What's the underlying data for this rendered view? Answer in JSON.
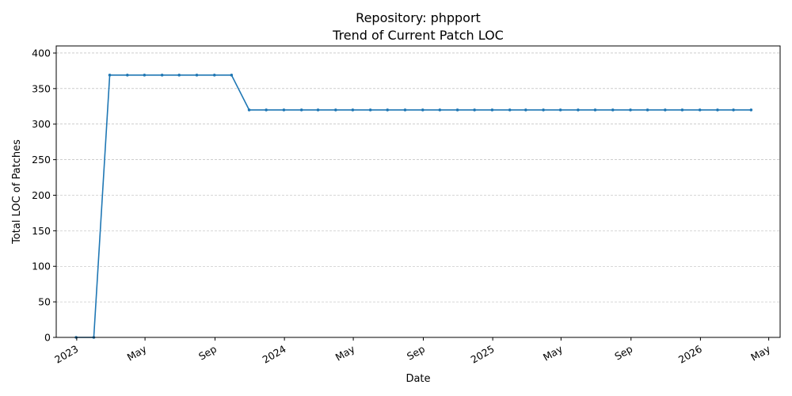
{
  "chart_data": {
    "type": "line",
    "title": "Repository: phpport",
    "subtitle": "Trend of Current Patch LOC",
    "xlabel": "Date",
    "ylabel": "Total LOC of Patches",
    "ylim": [
      0,
      410
    ],
    "yticks": [
      0,
      50,
      100,
      150,
      200,
      250,
      300,
      350,
      400
    ],
    "xlim": [
      "2022-11-26",
      "2026-05-21"
    ],
    "xticks": [
      {
        "date": "2023-01-01",
        "label": "2023"
      },
      {
        "date": "2023-05-01",
        "label": "May"
      },
      {
        "date": "2023-09-01",
        "label": "Sep"
      },
      {
        "date": "2024-01-01",
        "label": "2024"
      },
      {
        "date": "2024-05-01",
        "label": "May"
      },
      {
        "date": "2024-09-01",
        "label": "Sep"
      },
      {
        "date": "2025-01-01",
        "label": "2025"
      },
      {
        "date": "2025-05-01",
        "label": "May"
      },
      {
        "date": "2025-09-01",
        "label": "Sep"
      },
      {
        "date": "2026-01-01",
        "label": "2026"
      },
      {
        "date": "2026-05-01",
        "label": "May"
      }
    ],
    "grid": "y",
    "color": "#1f77b4",
    "series": [
      {
        "x": [
          "2022-12-31",
          "2023-01-31",
          "2023-02-28",
          "2023-03-31",
          "2023-04-30",
          "2023-05-31",
          "2023-06-30",
          "2023-07-31",
          "2023-08-31",
          "2023-09-30",
          "2023-10-31",
          "2023-11-30",
          "2023-12-31",
          "2024-01-31",
          "2024-02-29",
          "2024-03-31",
          "2024-04-30",
          "2024-05-31",
          "2024-06-30",
          "2024-07-31",
          "2024-08-31",
          "2024-09-30",
          "2024-10-31",
          "2024-11-30",
          "2024-12-31",
          "2025-01-31",
          "2025-02-28",
          "2025-03-31",
          "2025-04-30",
          "2025-05-31",
          "2025-06-30",
          "2025-07-31",
          "2025-08-31",
          "2025-09-30",
          "2025-10-31",
          "2025-11-30",
          "2025-12-31",
          "2026-01-31",
          "2026-02-28",
          "2026-03-31"
        ],
        "values": [
          0,
          0,
          369,
          369,
          369,
          369,
          369,
          369,
          369,
          369,
          320,
          320,
          320,
          320,
          320,
          320,
          320,
          320,
          320,
          320,
          320,
          320,
          320,
          320,
          320,
          320,
          320,
          320,
          320,
          320,
          320,
          320,
          320,
          320,
          320,
          320,
          320,
          320,
          320,
          320
        ]
      }
    ]
  }
}
